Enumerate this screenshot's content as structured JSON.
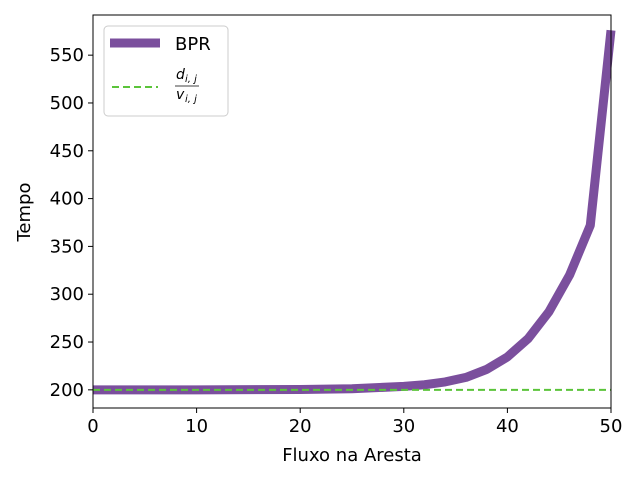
{
  "chart_data": {
    "type": "line",
    "title": "",
    "xlabel": "Fluxo na Aresta",
    "ylabel": "Tempo",
    "xlim": [
      0,
      50
    ],
    "ylim": [
      181,
      592
    ],
    "xticks": [
      0,
      10,
      20,
      30,
      40,
      50
    ],
    "yticks": [
      200,
      250,
      300,
      350,
      400,
      450,
      500,
      550
    ],
    "grid": false,
    "legend_position": "top-left",
    "series": [
      {
        "name": "BPR",
        "style": "solid-thick",
        "color": "#7b4f9d",
        "x": [
          0,
          10,
          20,
          25,
          30,
          32,
          34,
          36,
          38,
          40,
          42,
          44,
          46,
          48,
          50
        ],
        "y": [
          200,
          200,
          200.4,
          201.1,
          203.6,
          205.3,
          208.3,
          213.0,
          221.4,
          234.4,
          253.6,
          281.5,
          320.0,
          372.0,
          576.0
        ]
      },
      {
        "name": "d_{i,j} / v_{i,j}",
        "legend_numerator": "d",
        "legend_numerator_sub": "i, j",
        "legend_denominator": "v",
        "legend_denominator_sub": "i, j",
        "style": "dashed",
        "color": "#5bc43a",
        "x": [
          0,
          50
        ],
        "y": [
          200,
          200
        ]
      }
    ]
  }
}
